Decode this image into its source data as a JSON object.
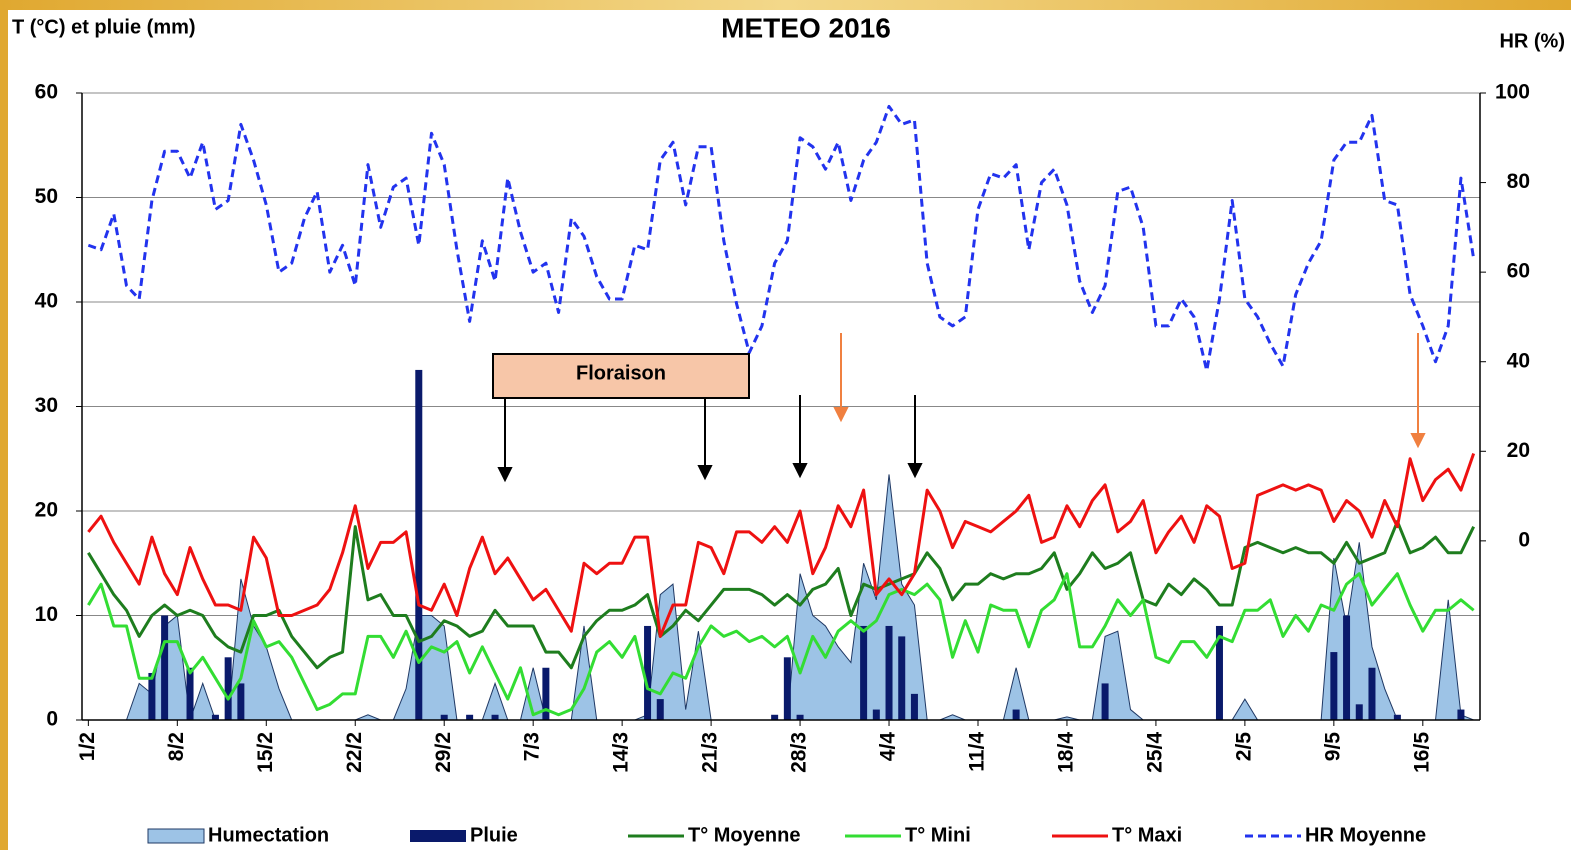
{
  "chart_data": {
    "type": "line",
    "title": "METEO 2016",
    "y_label": "T (°C) et pluie (mm)",
    "y2_label": "HR (%)",
    "annotation": "Floraison",
    "grid": true,
    "xlim": [
      -0.5,
      109.5
    ],
    "xticks": [
      {
        "value": 0,
        "label": "1/2"
      },
      {
        "value": 7,
        "label": "8/2"
      },
      {
        "value": 14,
        "label": "15/2"
      },
      {
        "value": 21,
        "label": "22/2"
      },
      {
        "value": 28,
        "label": "29/2"
      },
      {
        "value": 35,
        "label": "7/3"
      },
      {
        "value": 42,
        "label": "14/3"
      },
      {
        "value": 49,
        "label": "21/3"
      },
      {
        "value": 56,
        "label": "28/3"
      },
      {
        "value": 63,
        "label": "4/4"
      },
      {
        "value": 70,
        "label": "11/4"
      },
      {
        "value": 77,
        "label": "18/4"
      },
      {
        "value": 84,
        "label": "25/4"
      },
      {
        "value": 91,
        "label": "2/5"
      },
      {
        "value": 98,
        "label": "9/5"
      },
      {
        "value": 105,
        "label": "16/5"
      }
    ],
    "ylim": [
      0,
      60
    ],
    "yticks": [
      0,
      10,
      20,
      30,
      40,
      50,
      60
    ],
    "y2lim": [
      -40,
      100
    ],
    "y2ticks": [
      0,
      20,
      40,
      60,
      80,
      100
    ],
    "x": [
      0,
      1,
      2,
      3,
      4,
      5,
      6,
      7,
      8,
      9,
      10,
      11,
      12,
      13,
      14,
      15,
      16,
      17,
      18,
      19,
      20,
      21,
      22,
      23,
      24,
      25,
      26,
      27,
      28,
      29,
      30,
      31,
      32,
      33,
      34,
      35,
      36,
      37,
      38,
      39,
      40,
      41,
      42,
      43,
      44,
      45,
      46,
      47,
      48,
      49,
      50,
      51,
      52,
      53,
      54,
      55,
      56,
      57,
      58,
      59,
      60,
      61,
      62,
      63,
      64,
      65,
      66,
      67,
      68,
      69,
      70,
      71,
      72,
      73,
      74,
      75,
      76,
      77,
      78,
      79,
      80,
      81,
      82,
      83,
      84,
      85,
      86,
      87,
      88,
      89,
      90,
      91,
      92,
      93,
      94,
      95,
      96,
      97,
      98,
      99,
      100,
      101,
      102,
      103,
      104,
      105,
      106,
      107,
      108,
      109
    ],
    "series": [
      {
        "name": "Humectation",
        "type": "area",
        "color": "#9dc3e6",
        "values": [
          0,
          0,
          0,
          0,
          3.5,
          2.5,
          9,
          10,
          0,
          3.5,
          0,
          0,
          13.5,
          9,
          7,
          3,
          0,
          0,
          0,
          0,
          0,
          0,
          0.5,
          0,
          0,
          3,
          10,
          10,
          9,
          0,
          0,
          0,
          3.5,
          0,
          0,
          5,
          0,
          0,
          0,
          9,
          0,
          0,
          0,
          0,
          0.5,
          12,
          13,
          1,
          8.5,
          0,
          0,
          0,
          0,
          0,
          0,
          0,
          14,
          10,
          9,
          7,
          5.5,
          15,
          11.5,
          23.5,
          13,
          11,
          0,
          0,
          0.5,
          0,
          0,
          0,
          0,
          5,
          0,
          0,
          0,
          0.3,
          0,
          0,
          8,
          8.5,
          1,
          0,
          0,
          0,
          0,
          0,
          0,
          0,
          0,
          2,
          0,
          0,
          0,
          0,
          0,
          0,
          15.5,
          9,
          17,
          7,
          3,
          0,
          0,
          0,
          0,
          11.5,
          0.5,
          0
        ]
      },
      {
        "name": "Pluie",
        "type": "bar",
        "color": "#0a1a6b",
        "values": [
          0,
          0,
          0,
          0,
          0,
          4.5,
          10,
          0,
          5,
          0,
          0.5,
          6,
          3.5,
          0,
          0,
          0,
          0,
          0,
          0,
          0,
          0,
          0,
          0,
          0,
          0,
          0,
          33.5,
          0,
          0.5,
          0,
          0.5,
          0,
          0.5,
          0,
          0,
          0,
          5,
          0,
          0,
          0,
          0,
          0,
          0,
          0,
          9,
          2,
          0,
          0,
          0,
          0,
          0,
          0,
          0,
          0,
          0.5,
          6,
          0.5,
          0,
          0,
          0,
          0,
          9,
          1,
          9,
          8,
          2.5,
          0,
          0,
          0,
          0,
          0,
          0,
          0,
          1,
          0,
          0,
          0,
          0,
          0,
          0,
          3.5,
          0,
          0,
          0,
          0,
          0,
          0,
          0,
          0,
          9,
          0,
          0,
          0,
          0,
          0,
          0,
          0,
          0,
          6.5,
          10,
          1.5,
          5,
          0,
          0.5,
          0,
          0,
          0,
          0,
          1,
          0
        ]
      },
      {
        "name": "T° Moyenne",
        "type": "line",
        "color": "#1e7d1e",
        "values": [
          16,
          14,
          12,
          10.5,
          8,
          10,
          11,
          10,
          10.5,
          10,
          8,
          7,
          6.5,
          10,
          10,
          10.5,
          8,
          6.5,
          5,
          6,
          6.5,
          18.5,
          11.5,
          12,
          10,
          10,
          7.5,
          8,
          9.5,
          9,
          8,
          8.5,
          10.5,
          9,
          9,
          9,
          6.5,
          6.5,
          5,
          8,
          9.5,
          10.5,
          10.5,
          11,
          12,
          8,
          9,
          10.5,
          9.5,
          11,
          12.5,
          12.5,
          12.5,
          12,
          11,
          12,
          11,
          12.5,
          13,
          14.5,
          10,
          13,
          12.5,
          13,
          13.5,
          14,
          16,
          14.5,
          11.5,
          13,
          13,
          14,
          13.5,
          14,
          14,
          14.5,
          16,
          12.5,
          14,
          16,
          14.5,
          15,
          16,
          11.5,
          11,
          13,
          12,
          13.5,
          12.5,
          11,
          11,
          16.5,
          17,
          16.5,
          16,
          16.5,
          16,
          16,
          15,
          17,
          15,
          15.5,
          16,
          19,
          16,
          16.5,
          17.5,
          16,
          16,
          18.5
        ]
      },
      {
        "name": "T° Mini",
        "type": "line",
        "color": "#33dd33",
        "values": [
          11,
          13,
          9,
          9,
          4,
          4,
          7.5,
          7.5,
          4.5,
          6,
          4,
          2,
          4,
          9.5,
          7,
          7.5,
          6,
          3.5,
          1,
          1.5,
          2.5,
          2.5,
          8,
          8,
          6,
          8.5,
          5.5,
          7,
          6.5,
          7.5,
          4.5,
          7,
          4.5,
          2,
          5,
          0.5,
          1,
          0.5,
          1,
          3,
          6.5,
          7.5,
          6,
          8,
          3,
          2.5,
          4.5,
          4,
          7,
          9,
          8,
          8.5,
          7.5,
          8,
          7,
          8,
          4.5,
          8,
          6,
          8.5,
          9.5,
          8.5,
          9.5,
          12,
          12.5,
          12,
          13,
          11.5,
          6,
          9.5,
          6.5,
          11,
          10.5,
          10.5,
          7,
          10.5,
          11.5,
          14,
          7,
          7,
          9,
          11.5,
          10,
          11.5,
          6,
          5.5,
          7.5,
          7.5,
          6,
          8,
          7.5,
          10.5,
          10.5,
          11.5,
          8,
          10,
          8.5,
          11,
          10.5,
          13,
          14,
          11,
          12.5,
          14,
          11,
          8.5,
          10.5,
          10.5,
          11.5,
          10.5
        ]
      },
      {
        "name": "T° Maxi",
        "type": "line",
        "color": "#ee1111",
        "values": [
          18,
          19.5,
          17,
          15,
          13,
          17.5,
          14,
          12,
          16.5,
          13.5,
          11,
          11,
          10.5,
          17.5,
          15.5,
          10,
          10,
          10.5,
          11,
          12.5,
          16,
          20.5,
          14.5,
          17,
          17,
          18,
          11,
          10.5,
          13,
          10,
          14.5,
          17.5,
          14,
          15.5,
          13.5,
          11.5,
          12.5,
          10.5,
          8.5,
          15,
          14,
          15,
          15,
          17.5,
          17.5,
          8,
          11,
          11,
          17,
          16.5,
          14,
          18,
          18,
          17,
          18.5,
          17,
          20,
          14,
          16.5,
          20.5,
          18.5,
          22,
          12,
          13.5,
          12,
          14,
          22,
          20,
          16.5,
          19,
          18.5,
          18,
          19,
          20,
          21.5,
          17,
          17.5,
          20.5,
          18.5,
          21,
          22.5,
          18,
          19,
          21,
          16,
          18,
          19.5,
          17,
          20.5,
          19.5,
          14.5,
          15,
          21.5,
          22,
          22.5,
          22,
          22.5,
          22,
          19,
          21,
          20,
          17.5,
          21,
          18.5,
          25,
          21,
          23,
          24,
          22,
          25.5
        ]
      },
      {
        "name": "HR Moyenne",
        "type": "line",
        "axis": "y2",
        "dashed": true,
        "color": "#2233ee",
        "values": [
          66,
          65,
          73,
          57,
          54,
          76,
          87,
          87,
          81,
          89,
          74,
          76,
          93,
          85,
          75,
          60,
          62,
          72,
          78,
          60,
          66,
          57,
          84,
          70,
          79,
          81,
          66,
          91,
          84,
          65,
          49,
          67,
          58,
          81,
          69,
          60,
          62,
          51,
          72,
          68,
          59,
          54,
          54,
          66,
          65,
          85,
          89,
          75,
          88,
          88,
          67,
          53,
          42,
          48,
          62,
          67,
          90,
          88,
          83,
          89,
          76,
          85,
          89,
          97,
          93,
          94,
          62,
          50,
          48,
          50,
          74,
          82,
          81,
          84,
          65,
          80,
          83,
          75,
          58,
          51,
          57,
          78,
          79,
          70,
          48,
          48,
          54,
          50,
          38,
          54,
          76,
          54,
          50,
          44,
          39,
          55,
          62,
          67,
          85,
          89,
          89,
          95,
          76,
          75,
          55,
          48,
          40,
          48,
          81,
          63
        ]
      }
    ]
  }
}
